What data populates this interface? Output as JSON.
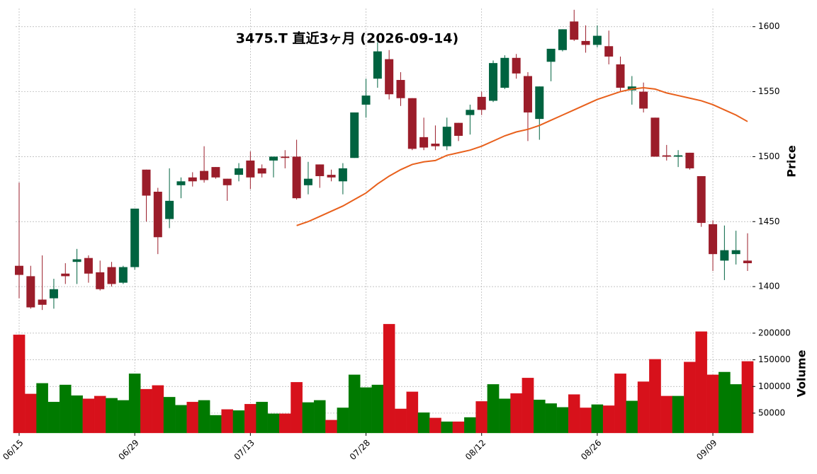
{
  "chart_data": {
    "type": "candlestick",
    "title": "3475.T 直近3ヶ月 (2026-09-14)",
    "ylabel": "Price",
    "y2label": "Volume",
    "categories": [
      "06/15",
      null,
      null,
      null,
      null,
      null,
      null,
      null,
      null,
      null,
      "06/29",
      null,
      null,
      null,
      null,
      null,
      null,
      null,
      null,
      null,
      "07/13",
      null,
      null,
      null,
      null,
      null,
      null,
      null,
      null,
      null,
      "07/28",
      null,
      null,
      null,
      null,
      null,
      null,
      null,
      null,
      null,
      "08/12",
      null,
      null,
      null,
      null,
      null,
      null,
      null,
      null,
      null,
      "08/26",
      null,
      null,
      null,
      null,
      null,
      null,
      null,
      null,
      null,
      "09/09",
      null,
      null,
      null
    ],
    "open": [
      1416,
      1408,
      1390,
      1391,
      1410,
      1419,
      1422,
      1411,
      1415,
      1403,
      1415,
      1490,
      1473,
      1452,
      1478,
      1484,
      1489,
      1492,
      1483,
      1486,
      1497,
      1491,
      1497,
      1500,
      1500,
      1478,
      1494,
      1486,
      1481,
      1499,
      1540,
      1560,
      1575,
      1559,
      1545,
      1515,
      1510,
      1508,
      1526,
      1532,
      1546,
      1543,
      1553,
      1576,
      1562,
      1529,
      1573,
      1582,
      1604,
      1589,
      1586,
      1585,
      1571,
      1551,
      1550,
      1530,
      1501,
      1500,
      1503,
      1485,
      1448,
      1420,
      1425,
      1420
    ],
    "high": [
      1480,
      1416,
      1424,
      1406,
      1418,
      1429,
      1424,
      1420,
      1419,
      1416,
      1460,
      1490,
      1476,
      1491,
      1484,
      1488,
      1508,
      1492,
      1483,
      1495,
      1504,
      1494,
      1500,
      1505,
      1513,
      1496,
      1494,
      1490,
      1495,
      1534,
      1560,
      1588,
      1582,
      1565,
      1545,
      1530,
      1524,
      1530,
      1526,
      1540,
      1550,
      1574,
      1578,
      1579,
      1565,
      1554,
      1583,
      1598,
      1613,
      1601,
      1601,
      1597,
      1577,
      1562,
      1557,
      1530,
      1509,
      1505,
      1503,
      1485,
      1451,
      1447,
      1443,
      1441
    ],
    "low": [
      1391,
      1383,
      1382,
      1383,
      1402,
      1402,
      1403,
      1397,
      1400,
      1402,
      1413,
      1450,
      1425,
      1445,
      1468,
      1477,
      1480,
      1483,
      1466,
      1481,
      1475,
      1484,
      1484,
      1491,
      1467,
      1471,
      1476,
      1481,
      1471,
      1499,
      1530,
      1553,
      1544,
      1539,
      1505,
      1505,
      1505,
      1505,
      1512,
      1517,
      1532,
      1542,
      1552,
      1560,
      1512,
      1513,
      1558,
      1581,
      1589,
      1580,
      1584,
      1571,
      1550,
      1540,
      1534,
      1500,
      1497,
      1492,
      1490,
      1446,
      1412,
      1405,
      1417,
      1412
    ],
    "close": [
      1409,
      1384,
      1386,
      1398,
      1408,
      1421,
      1410,
      1398,
      1402,
      1415,
      1460,
      1470,
      1438,
      1466,
      1481,
      1481,
      1482,
      1484,
      1478,
      1491,
      1484,
      1487,
      1500,
      1499,
      1468,
      1483,
      1485,
      1484,
      1491,
      1534,
      1547,
      1581,
      1548,
      1545,
      1506,
      1507,
      1508,
      1523,
      1516,
      1536,
      1536,
      1572,
      1576,
      1564,
      1534,
      1554,
      1583,
      1598,
      1590,
      1586,
      1593,
      1577,
      1553,
      1554,
      1537,
      1500,
      1500,
      1501,
      1491,
      1449,
      1425,
      1428,
      1428,
      1418
    ],
    "up_color": "#006340",
    "down_color": "#9b1d2a",
    "ma": {
      "color": "#e8601c",
      "values": [
        null,
        null,
        null,
        null,
        null,
        null,
        null,
        null,
        null,
        null,
        null,
        null,
        null,
        null,
        null,
        null,
        null,
        null,
        null,
        null,
        null,
        null,
        null,
        null,
        1447,
        1450,
        1454,
        1458,
        1462,
        1467,
        1472,
        1479,
        1485,
        1490,
        1494,
        1496,
        1497,
        1501,
        1503,
        1505,
        1508,
        1512,
        1516,
        1519,
        1521,
        1524,
        1528,
        1532,
        1536,
        1540,
        1544,
        1547,
        1550,
        1552,
        1553,
        1552,
        1549,
        1547,
        1545,
        1543,
        1540,
        1536,
        1532,
        1527
      ]
    },
    "volume": {
      "values": [
        197000,
        86000,
        106000,
        71000,
        103000,
        83000,
        77000,
        82000,
        78000,
        74000,
        124000,
        95000,
        102000,
        80000,
        65000,
        71000,
        74000,
        46000,
        57000,
        55000,
        67000,
        71000,
        49000,
        49000,
        108000,
        70000,
        74000,
        37000,
        60000,
        122000,
        98000,
        103000,
        217000,
        58000,
        90000,
        51000,
        41000,
        34000,
        34000,
        42000,
        72000,
        104000,
        77000,
        87000,
        116000,
        75000,
        68000,
        61000,
        85000,
        60000,
        66000,
        64000,
        124000,
        73000,
        109000,
        151000,
        82000,
        82000,
        146000,
        203000,
        122000,
        127000,
        104000,
        147000
      ],
      "colors": [
        "#d7111b",
        "#d7111b",
        "#007a00",
        "#007a00",
        "#007a00",
        "#007a00",
        "#d7111b",
        "#d7111b",
        "#007a00",
        "#007a00",
        "#007a00",
        "#d7111b",
        "#d7111b",
        "#007a00",
        "#007a00",
        "#d7111b",
        "#007a00",
        "#007a00",
        "#d7111b",
        "#007a00",
        "#d7111b",
        "#007a00",
        "#007a00",
        "#d7111b",
        "#d7111b",
        "#007a00",
        "#007a00",
        "#d7111b",
        "#007a00",
        "#007a00",
        "#007a00",
        "#007a00",
        "#d7111b",
        "#d7111b",
        "#d7111b",
        "#007a00",
        "#d7111b",
        "#007a00",
        "#d7111b",
        "#007a00",
        "#d7111b",
        "#007a00",
        "#007a00",
        "#d7111b",
        "#d7111b",
        "#007a00",
        "#007a00",
        "#007a00",
        "#d7111b",
        "#d7111b",
        "#007a00",
        "#d7111b",
        "#d7111b",
        "#007a00",
        "#d7111b",
        "#d7111b",
        "#d7111b",
        "#007a00",
        "#d7111b",
        "#d7111b",
        "#d7111b",
        "#007a00",
        "#007a00",
        "#d7111b"
      ]
    },
    "ylim": [
      1381,
      1614
    ],
    "yticks": [
      1400,
      1450,
      1500,
      1550,
      1600
    ],
    "y2lim": [
      12800,
      241000
    ],
    "y2ticks": [
      50000,
      100000,
      150000,
      200000
    ],
    "grid": true
  }
}
